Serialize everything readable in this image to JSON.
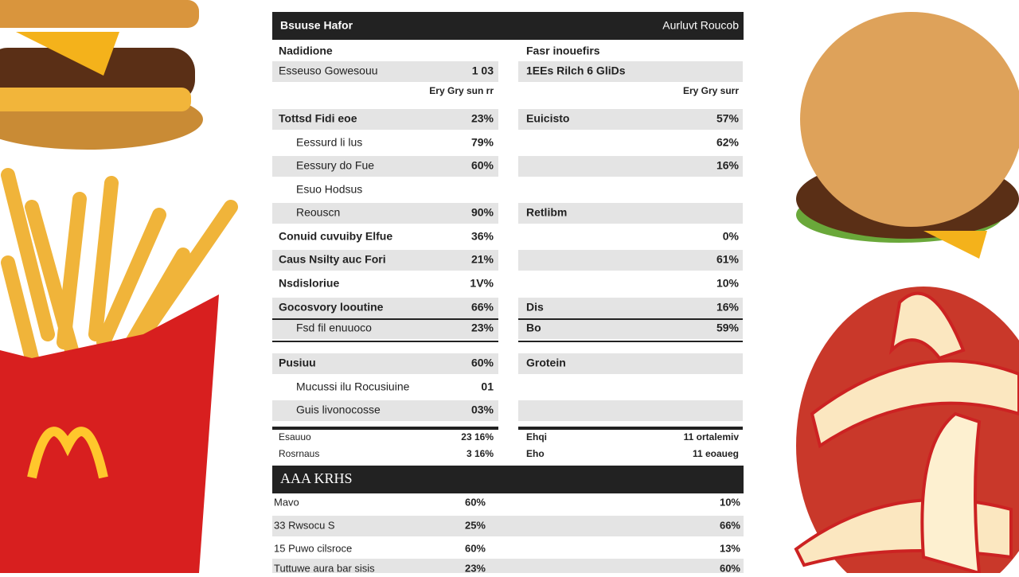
{
  "header": {
    "left": "Bsuuse Hafor",
    "right": "Aurluvt Roucob"
  },
  "table": {
    "rows": [
      [
        "Nadidione",
        null,
        "Fasr inouefirs",
        null
      ],
      [
        "Esseuso Gowesouu",
        "1 03",
        "1EEs Rilch 6 GliDs",
        null
      ],
      [
        null,
        "Ery Gry sun rr",
        null,
        "Ery Gry surr"
      ],
      [
        "Tottsd Fidi eoe",
        "23%",
        "Euicisto",
        "57%"
      ],
      [
        "Eessurd li lus",
        "79%",
        null,
        "62%"
      ],
      [
        "Eessury do Fue",
        "60%",
        null,
        "16%"
      ],
      [
        "Esuo Hodsus",
        null,
        null,
        null
      ],
      [
        "Reouscn",
        "90%",
        "Retlibm",
        null
      ],
      [
        "Conuid cuvuiby Elfue",
        "36%",
        null,
        "0%"
      ],
      [
        "Caus Nsilty auc Fori",
        "21%",
        null,
        "61%"
      ],
      [
        "Nsdisloriue",
        "1V%",
        null,
        "10%"
      ],
      [
        "Gocosvory looutine",
        "66%",
        "Dis",
        "16%"
      ],
      [
        "Fsd fil enuuoco",
        "23%",
        "Bo",
        "59%"
      ],
      [
        "Pusiuu",
        "60%",
        "Grotein",
        null
      ],
      [
        "Mucussi ilu Rocusiuine",
        "01",
        null,
        null
      ],
      [
        "Guis livonocosse",
        "03%",
        null,
        null
      ],
      [
        "Esauuo",
        "23 16%",
        "Ehqi",
        "11 ortalemiv"
      ],
      [
        "Rosrnaus",
        "3 16%",
        "Eho",
        "11 eoaueg"
      ]
    ]
  },
  "section": {
    "title": "AAA KRHS",
    "rows": [
      [
        "Mavo",
        "60%",
        "10%"
      ],
      [
        "33 Rwsocu S",
        "25%",
        "66%"
      ],
      [
        "15 Puwo cilsroce",
        "60%",
        "13%"
      ],
      [
        "Tuttuwe aura bar sisis",
        "23%",
        "60%"
      ]
    ]
  }
}
